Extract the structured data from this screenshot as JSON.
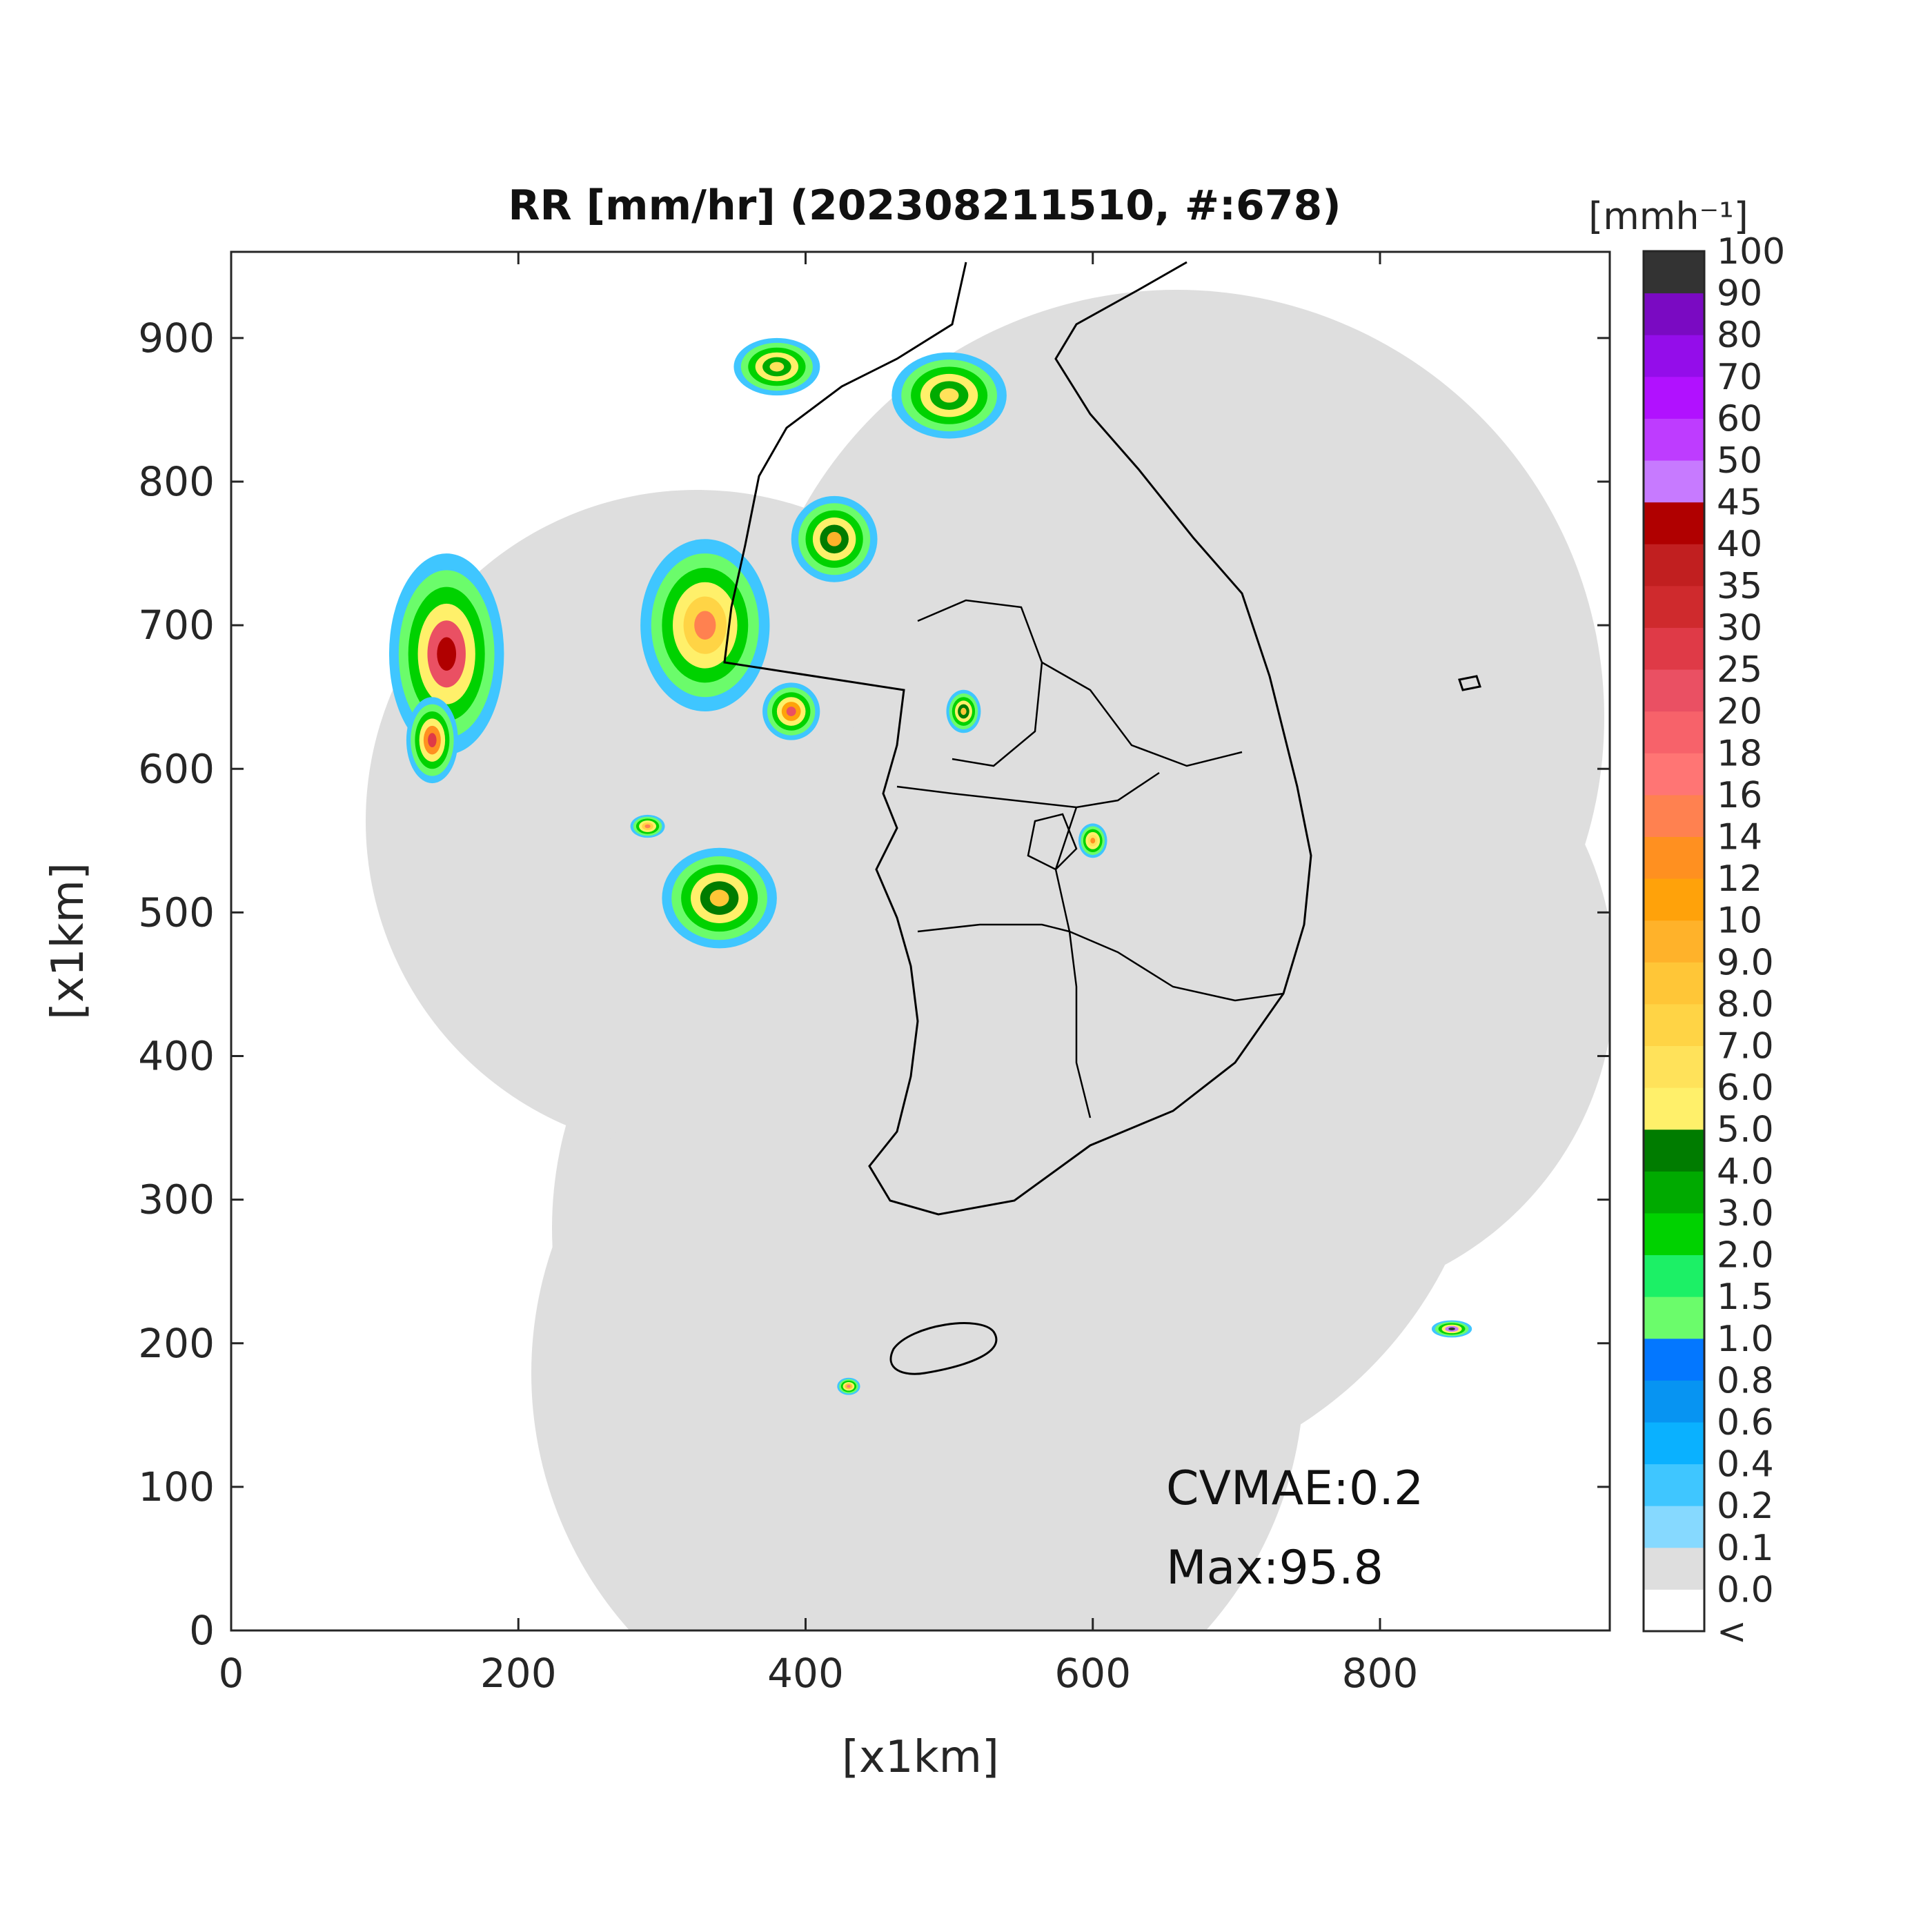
{
  "chart_data": {
    "type": "heatmap",
    "title": "RR [mm/hr] (202308211510, #:678)",
    "xlabel": "[x1km]",
    "ylabel": "[x1km]",
    "xlim": [
      0,
      960
    ],
    "ylim": [
      0,
      960
    ],
    "xticks": [
      0,
      200,
      400,
      600,
      800
    ],
    "yticks": [
      0,
      100,
      200,
      300,
      400,
      500,
      600,
      700,
      800,
      900
    ],
    "grid": false,
    "colorbar": {
      "unit_label": "[mmh⁻¹]",
      "levels": [
        "<",
        "0.0",
        "0.1",
        "0.2",
        "0.4",
        "0.6",
        "0.8",
        "1.0",
        "1.5",
        "2.0",
        "3.0",
        "4.0",
        "5.0",
        "6.0",
        "7.0",
        "8.0",
        "9.0",
        "10",
        "12",
        "14",
        "16",
        "18",
        "20",
        "25",
        "30",
        "35",
        "40",
        "45",
        "50",
        "60",
        "70",
        "80",
        "90",
        "100"
      ],
      "colors": [
        "#ffffff",
        "#dedede",
        "#86d9ff",
        "#3fc6ff",
        "#0ab1ff",
        "#0794f2",
        "#0377ff",
        "#6bfc6b",
        "#1cf066",
        "#00d200",
        "#00aa00",
        "#007c00",
        "#fff06a",
        "#ffe25a",
        "#ffd445",
        "#ffc637",
        "#ffb22a",
        "#ffa20a",
        "#ff9020",
        "#ff8150",
        "#ff7574",
        "#f7626a",
        "#ea5063",
        "#df3a47",
        "#cf2a2d",
        "#c11f20",
        "#b00000",
        "#c77aff",
        "#be3cff",
        "#b111ff",
        "#940dea",
        "#7a0ac2",
        "#333333"
      ]
    },
    "coverage_color": "#dedede",
    "annotations": [
      "CVMAE:0.2",
      "Max:95.8"
    ],
    "max_value": 95.8,
    "cvmae": 0.2,
    "rain_cells": [
      {
        "x": 150,
        "y": 680,
        "rx": 40,
        "ry": 70,
        "peak": 40
      },
      {
        "x": 140,
        "y": 620,
        "rx": 18,
        "ry": 30,
        "peak": 25
      },
      {
        "x": 330,
        "y": 700,
        "rx": 45,
        "ry": 60,
        "peak": 14
      },
      {
        "x": 390,
        "y": 640,
        "rx": 20,
        "ry": 20,
        "peak": 20
      },
      {
        "x": 340,
        "y": 510,
        "rx": 40,
        "ry": 35,
        "peak": 8.0
      },
      {
        "x": 420,
        "y": 760,
        "rx": 30,
        "ry": 30,
        "peak": 9.0
      },
      {
        "x": 500,
        "y": 860,
        "rx": 40,
        "ry": 30,
        "peak": 6.0
      },
      {
        "x": 380,
        "y": 880,
        "rx": 30,
        "ry": 20,
        "peak": 6.0
      },
      {
        "x": 600,
        "y": 550,
        "rx": 10,
        "ry": 12,
        "peak": 12
      },
      {
        "x": 510,
        "y": 640,
        "rx": 12,
        "ry": 15,
        "peak": 8.0
      },
      {
        "x": 850,
        "y": 210,
        "rx": 14,
        "ry": 6,
        "peak": 95.8
      },
      {
        "x": 290,
        "y": 560,
        "rx": 12,
        "ry": 8,
        "peak": 14
      },
      {
        "x": 430,
        "y": 170,
        "rx": 8,
        "ry": 6,
        "peak": 16
      }
    ]
  }
}
